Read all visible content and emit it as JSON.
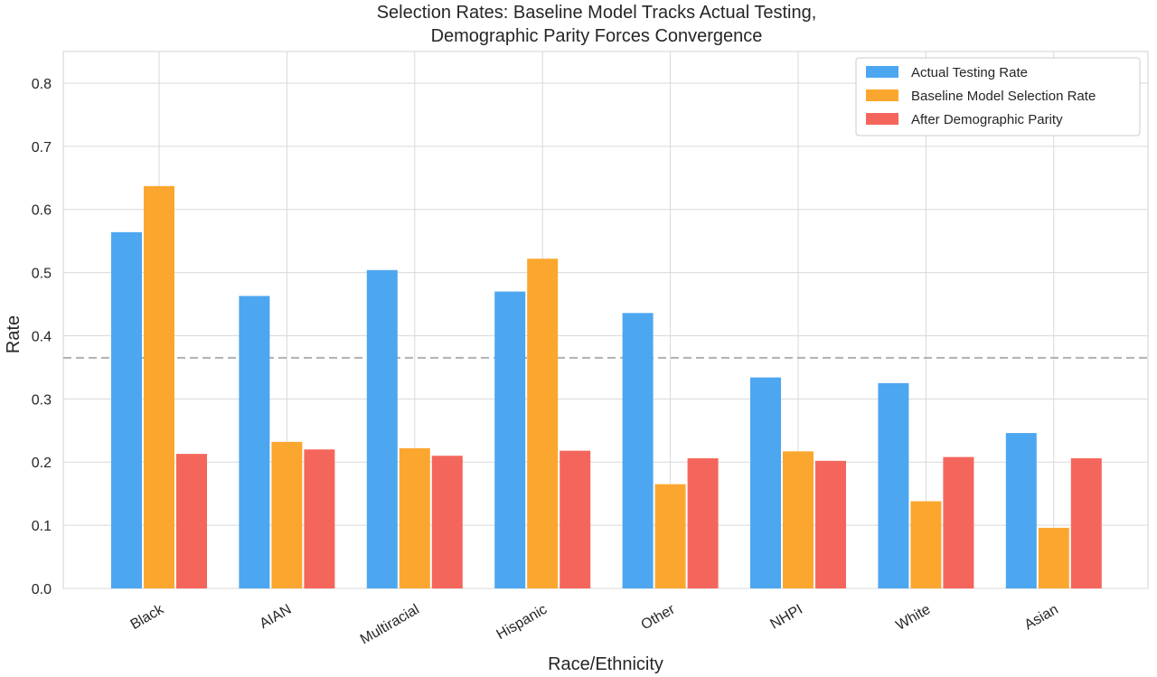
{
  "chart_data": {
    "type": "bar",
    "title_lines": [
      "Selection Rates: Baseline Model Tracks Actual Testing,",
      "Demographic Parity Forces Convergence"
    ],
    "xlabel": "Race/Ethnicity",
    "ylabel": "Rate",
    "ylim": [
      0,
      0.85
    ],
    "yticks": [
      "0.0",
      "0.1",
      "0.2",
      "0.3",
      "0.4",
      "0.5",
      "0.6",
      "0.7",
      "0.8"
    ],
    "grid": true,
    "legend_position": "top-right",
    "reference_line": {
      "y": 0.365,
      "style": "dashed",
      "color": "#b0b0b0"
    },
    "categories": [
      "Black",
      "AIAN",
      "Multiracial",
      "Hispanic",
      "Other",
      "NHPI",
      "White",
      "Asian"
    ],
    "series": [
      {
        "name": "Actual Testing Rate",
        "color": "#4da6f0",
        "values": [
          0.564,
          0.463,
          0.504,
          0.47,
          0.436,
          0.334,
          0.325,
          0.246
        ]
      },
      {
        "name": "Baseline Model Selection Rate",
        "color": "#fba72f",
        "values": [
          0.637,
          0.232,
          0.222,
          0.522,
          0.165,
          0.217,
          0.138,
          0.096
        ]
      },
      {
        "name": "After Demographic Parity",
        "color": "#f4665c",
        "values": [
          0.213,
          0.22,
          0.21,
          0.218,
          0.206,
          0.202,
          0.208,
          0.206
        ]
      }
    ]
  }
}
